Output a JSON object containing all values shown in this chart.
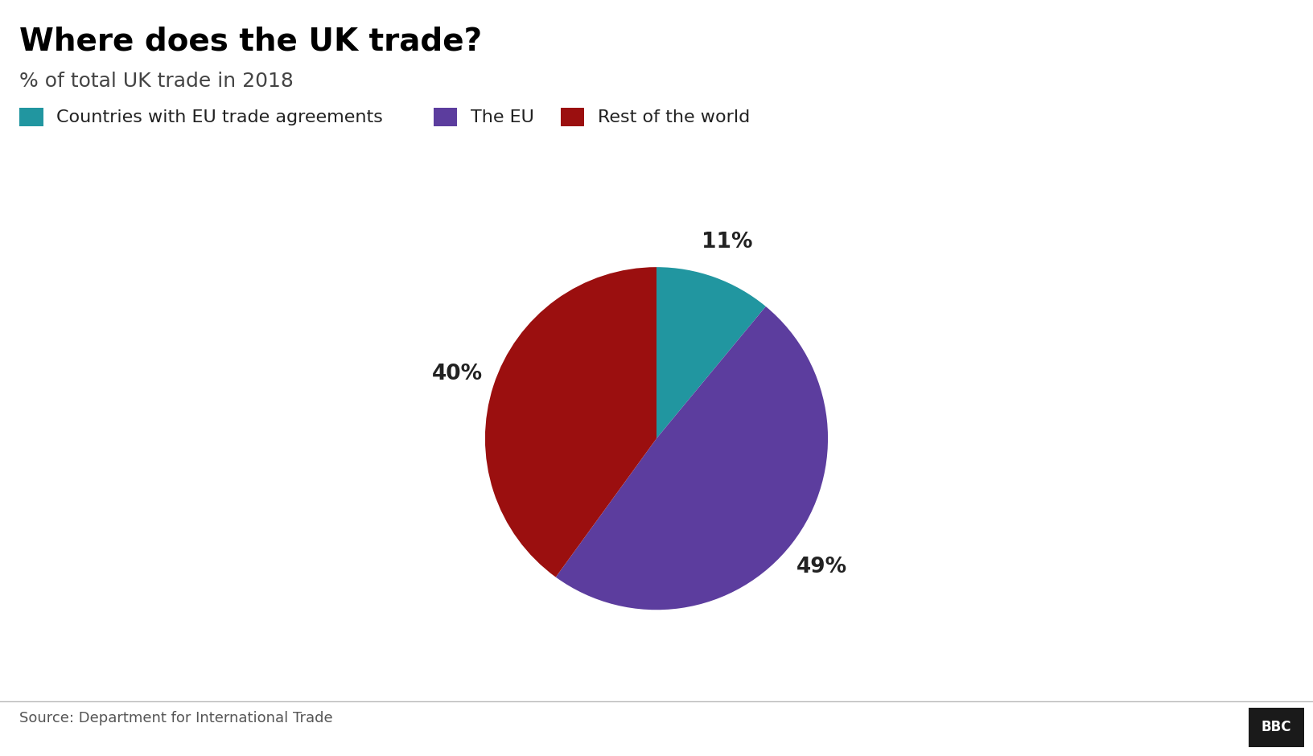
{
  "title": "Where does the UK trade?",
  "subtitle": "% of total UK trade in 2018",
  "slices": [
    11,
    49,
    40
  ],
  "labels": [
    "Countries with EU trade agreements",
    "The EU",
    "Rest of the world"
  ],
  "colors": [
    "#2196a0",
    "#5c3d9e",
    "#9b0f0f"
  ],
  "pct_labels": [
    "11%",
    "49%",
    "40%"
  ],
  "source": "Source: Department for International Trade",
  "bbc_label": "BBC",
  "background_color": "#ffffff",
  "title_fontsize": 28,
  "subtitle_fontsize": 18,
  "legend_fontsize": 16,
  "pct_fontsize": 19,
  "source_fontsize": 13
}
